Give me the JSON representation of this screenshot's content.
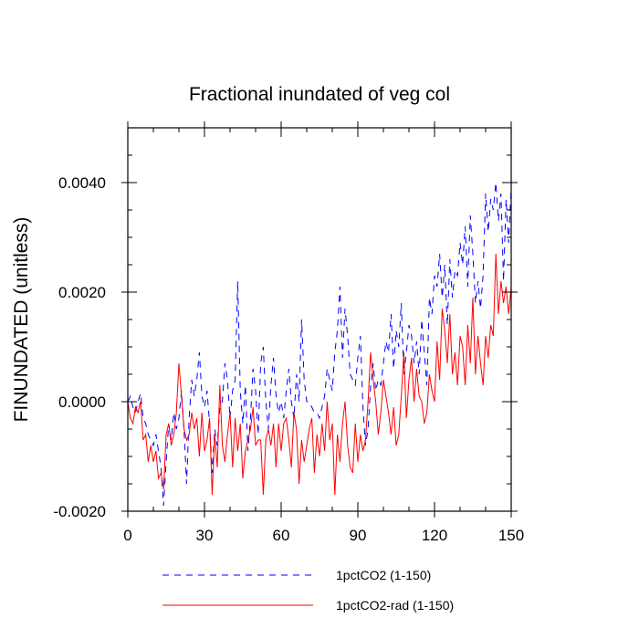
{
  "chart_data": {
    "type": "line",
    "title": "Fractional inundated of veg col",
    "ylabel": "FINUNDATED  (unitless)",
    "xlabel": "",
    "xlim": [
      0,
      150
    ],
    "ylim": [
      -0.002,
      0.005
    ],
    "x_ticks": [
      0,
      30,
      60,
      90,
      120,
      150
    ],
    "x_tick_labels": [
      "0",
      "30",
      "60",
      "90",
      "120",
      "150"
    ],
    "y_ticks": [
      -0.002,
      0.0,
      0.002,
      0.004
    ],
    "y_tick_labels": [
      "-0.0020",
      "0.0000",
      "0.0020",
      "0.0040"
    ],
    "grid": false,
    "legend_position": "bottom",
    "series": [
      {
        "name": "1pctCO2 (1-150)",
        "color": "#0000ff",
        "dash": "dashed",
        "x": [
          0,
          1,
          2,
          3,
          4,
          5,
          6,
          7,
          8,
          9,
          10,
          11,
          12,
          13,
          14,
          15,
          16,
          17,
          18,
          19,
          20,
          21,
          22,
          23,
          24,
          25,
          26,
          27,
          28,
          29,
          30,
          31,
          32,
          33,
          34,
          35,
          36,
          37,
          38,
          39,
          40,
          41,
          42,
          43,
          44,
          45,
          46,
          47,
          48,
          49,
          50,
          51,
          52,
          53,
          54,
          55,
          56,
          57,
          58,
          59,
          60,
          61,
          62,
          63,
          64,
          65,
          66,
          67,
          68,
          69,
          70,
          71,
          72,
          73,
          74,
          75,
          76,
          77,
          78,
          79,
          80,
          81,
          82,
          83,
          84,
          85,
          86,
          87,
          88,
          89,
          90,
          91,
          92,
          93,
          94,
          95,
          96,
          97,
          98,
          99,
          100,
          101,
          102,
          103,
          104,
          105,
          106,
          107,
          108,
          109,
          110,
          111,
          112,
          113,
          114,
          115,
          116,
          117,
          118,
          119,
          120,
          121,
          122,
          123,
          124,
          125,
          126,
          127,
          128,
          129,
          130,
          131,
          132,
          133,
          134,
          135,
          136,
          137,
          138,
          139,
          140,
          141,
          142,
          143,
          144,
          145,
          146,
          147,
          148,
          149,
          150
        ],
        "values": [
          0.0,
          0.0001,
          -0.0001,
          -0.0002,
          0.0,
          0.00015,
          -0.0003,
          -0.0004,
          -0.0006,
          -0.0007,
          -0.0008,
          -0.0006,
          -0.0009,
          -0.0012,
          -0.0019,
          -0.0011,
          -0.0004,
          -0.0007,
          -0.0002,
          -0.0005,
          -0.0003,
          0.0002,
          -0.0005,
          -0.0015,
          -0.0003,
          0.0004,
          0.0001,
          0.0004,
          0.0009,
          0.0001,
          -0.0001,
          0.0002,
          -0.0004,
          -0.0013,
          -0.0005,
          -0.0008,
          -0.0001,
          0.0,
          0.0007,
          0.0004,
          -0.0003,
          0.0002,
          0.0004,
          0.0022,
          0.0002,
          -0.0004,
          0.0003,
          -0.0009,
          -0.0003,
          0.0006,
          0.0002,
          -0.0006,
          0.0007,
          0.001,
          0.0,
          -0.0005,
          0.0003,
          0.0008,
          0.0001,
          -0.0002,
          0.0,
          -0.0003,
          0.0002,
          0.0006,
          0.0,
          -0.0003,
          0.0005,
          0.0,
          0.0015,
          0.0004,
          0.0,
          0.0,
          -0.0001,
          -0.0002,
          -0.0002,
          -0.0003,
          -0.0001,
          0.0001,
          0.0006,
          0.0004,
          0.0002,
          0.0009,
          0.0013,
          0.0021,
          0.0008,
          0.0017,
          0.0012,
          0.0005,
          0.0004,
          0.0003,
          0.0008,
          0.0012,
          -0.0001,
          -0.0008,
          -0.0005,
          0.0003,
          0.0007,
          0.0002,
          0.0004,
          0.0003,
          0.0007,
          0.0011,
          0.0009,
          0.0016,
          0.0006,
          0.0013,
          0.001,
          0.0018,
          0.0005,
          0.0009,
          0.0014,
          0.0012,
          0.0007,
          0.0011,
          0.0005,
          0.0015,
          0.0009,
          0.0003,
          0.0019,
          0.0016,
          0.0023,
          0.0021,
          0.0027,
          0.0019,
          0.0025,
          0.0014,
          0.0026,
          0.0019,
          0.0024,
          0.0023,
          0.0029,
          0.0025,
          0.0032,
          0.0021,
          0.0034,
          0.0027,
          0.0018,
          0.0022,
          0.0017,
          0.0023,
          0.0038,
          0.0031,
          0.0037,
          0.0035,
          0.004,
          0.0033,
          0.0038,
          0.0022,
          0.0037,
          0.0029,
          0.0039
        ]
      },
      {
        "name": "1pctCO2-rad (1-150)",
        "color": "#ff0000",
        "dash": "solid",
        "x": [
          0,
          1,
          2,
          3,
          4,
          5,
          6,
          7,
          8,
          9,
          10,
          11,
          12,
          13,
          14,
          15,
          16,
          17,
          18,
          19,
          20,
          21,
          22,
          23,
          24,
          25,
          26,
          27,
          28,
          29,
          30,
          31,
          32,
          33,
          34,
          35,
          36,
          37,
          38,
          39,
          40,
          41,
          42,
          43,
          44,
          45,
          46,
          47,
          48,
          49,
          50,
          51,
          52,
          53,
          54,
          55,
          56,
          57,
          58,
          59,
          60,
          61,
          62,
          63,
          64,
          65,
          66,
          67,
          68,
          69,
          70,
          71,
          72,
          73,
          74,
          75,
          76,
          77,
          78,
          79,
          80,
          81,
          82,
          83,
          84,
          85,
          86,
          87,
          88,
          89,
          90,
          91,
          92,
          93,
          94,
          95,
          96,
          97,
          98,
          99,
          100,
          101,
          102,
          103,
          104,
          105,
          106,
          107,
          108,
          109,
          110,
          111,
          112,
          113,
          114,
          115,
          116,
          117,
          118,
          119,
          120,
          121,
          122,
          123,
          124,
          125,
          126,
          127,
          128,
          129,
          130,
          131,
          132,
          133,
          134,
          135,
          136,
          137,
          138,
          139,
          140,
          141,
          142,
          143,
          144,
          145,
          146,
          147,
          148,
          149,
          150
        ],
        "values": [
          0.0,
          -0.0003,
          -0.0004,
          -0.0001,
          -0.0002,
          0.0,
          -0.0007,
          -0.0006,
          -0.0011,
          -0.0008,
          -0.0011,
          -0.0009,
          -0.0014,
          -0.0013,
          -0.0016,
          -0.0006,
          -0.0004,
          -0.0008,
          -0.0006,
          -0.0002,
          0.0007,
          0.0001,
          -0.0005,
          -0.0007,
          -0.0006,
          -0.0002,
          -0.0005,
          -0.0003,
          -0.001,
          -0.0002,
          -0.0009,
          -0.0007,
          -0.0003,
          -0.0017,
          -0.0006,
          -0.0012,
          0.0003,
          -0.0008,
          -0.0011,
          -0.0006,
          -0.0002,
          -0.0012,
          -0.0003,
          -0.0009,
          -0.0004,
          -0.0014,
          -0.0009,
          -0.0007,
          -0.0005,
          -0.0001,
          -0.0008,
          -0.0007,
          -0.0007,
          -0.0017,
          -0.0007,
          -0.0005,
          -0.0008,
          -0.0004,
          -0.0012,
          -0.0004,
          -0.0009,
          -0.0004,
          -0.0003,
          -0.0007,
          -0.0012,
          -0.0002,
          -0.0005,
          -0.0015,
          -0.0007,
          -0.0011,
          -0.0008,
          -0.0005,
          -0.0003,
          -0.0013,
          -0.0006,
          -0.001,
          -0.0004,
          -0.0009,
          0.0,
          -0.0007,
          -0.0004,
          -0.0017,
          -0.0006,
          -0.0011,
          -0.0004,
          0.0,
          -0.0008,
          -0.0012,
          -0.0013,
          -0.0004,
          -0.0011,
          -0.0006,
          -0.0009,
          -0.0007,
          0.0,
          0.0009,
          0.0004,
          0.0,
          -0.0006,
          -0.0002,
          0.0004,
          0.0001,
          -0.0002,
          -0.0006,
          -0.0001,
          -0.0008,
          -0.0006,
          0.0001,
          0.0009,
          -0.0003,
          0.0004,
          0.0008,
          0.0,
          0.0006,
          0.0001,
          0.0,
          -0.0004,
          -0.0002,
          0.0005,
          0.0002,
          0.0,
          0.0011,
          0.0004,
          0.0017,
          0.0013,
          0.0007,
          0.0016,
          0.0005,
          0.0009,
          0.0003,
          0.0012,
          0.001,
          0.0003,
          0.0014,
          0.0007,
          0.0019,
          0.0005,
          0.0012,
          0.0007,
          0.0003,
          0.0012,
          0.0008,
          0.0014,
          0.0012,
          0.0027,
          0.0016,
          0.0022,
          0.0018,
          0.0021,
          0.0016,
          0.0021
        ]
      }
    ]
  }
}
